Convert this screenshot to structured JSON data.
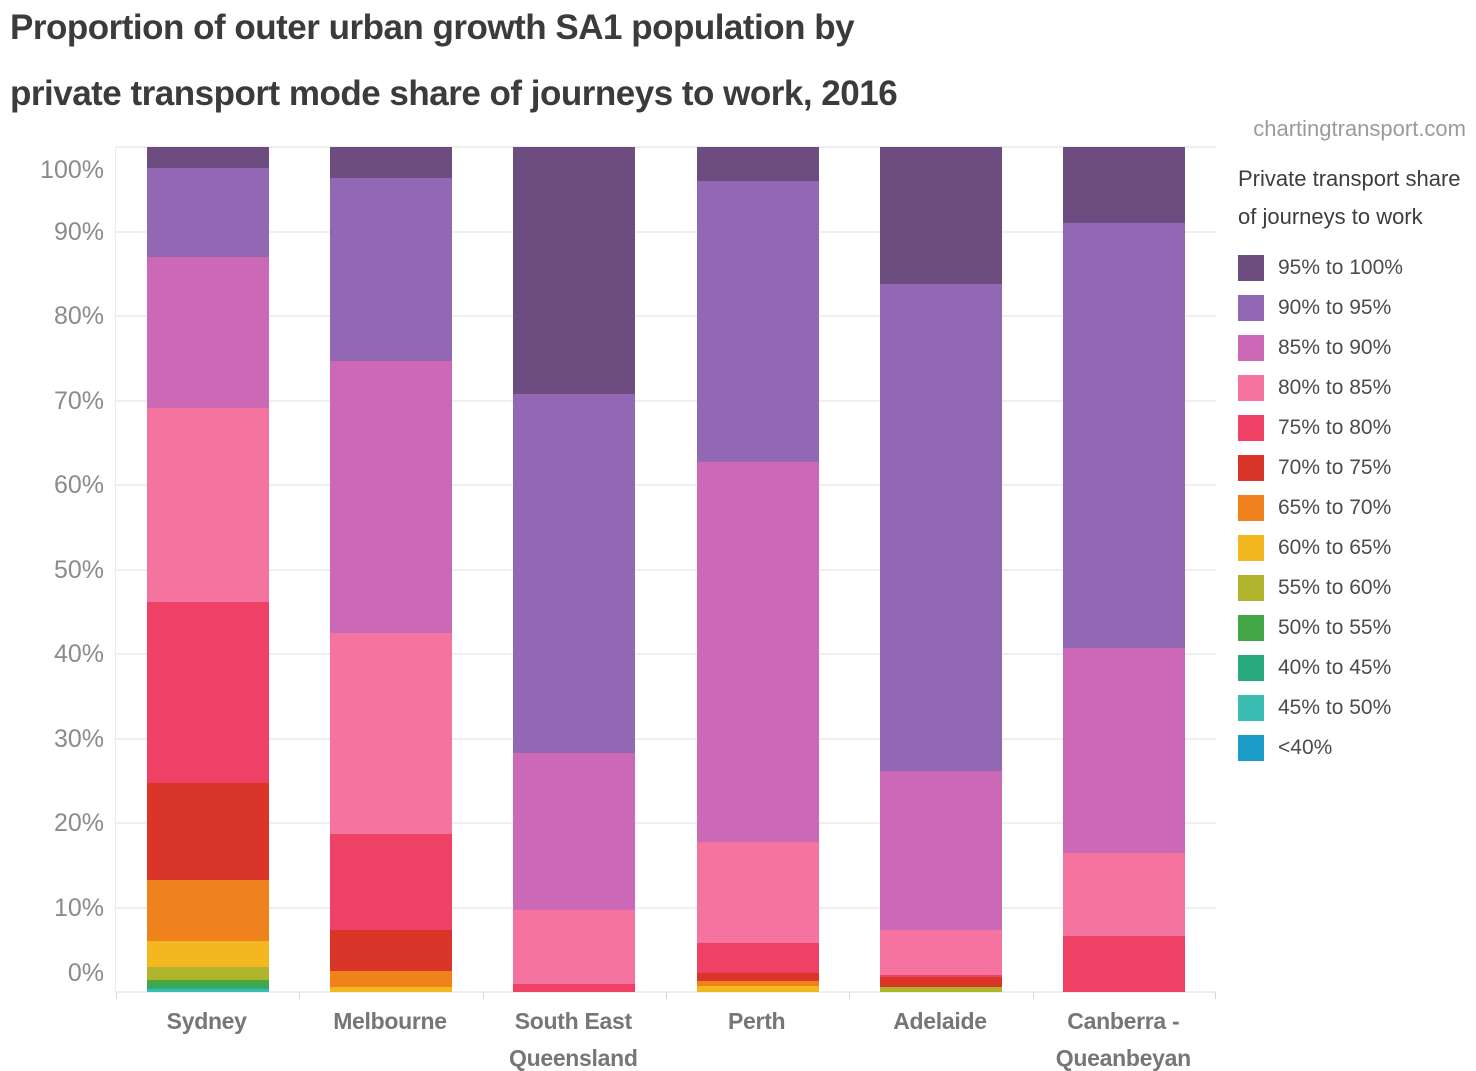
{
  "title": {
    "line1": "Proportion of outer urban growth SA1 population by",
    "line2": "private transport mode share of journeys to work, 2016"
  },
  "watermark": "chartingtransport.com",
  "legend": {
    "title": "Private transport share of journeys to work",
    "items": [
      {
        "label": "95% to 100%",
        "color": "#6d4c80"
      },
      {
        "label": "90% to 95%",
        "color": "#9267b4"
      },
      {
        "label": "85% to 90%",
        "color": "#cc69b6"
      },
      {
        "label": "80% to 85%",
        "color": "#f5739f"
      },
      {
        "label": "75% to 80%",
        "color": "#ef4165"
      },
      {
        "label": "70% to 75%",
        "color": "#d93528"
      },
      {
        "label": "65% to 70%",
        "color": "#f0821e"
      },
      {
        "label": "60% to 65%",
        "color": "#f3b820"
      },
      {
        "label": "55% to 60%",
        "color": "#afb42c"
      },
      {
        "label": "50% to 55%",
        "color": "#44a747"
      },
      {
        "label": "40% to 45%",
        "color": "#27ab7f"
      },
      {
        "label": "45% to 50%",
        "color": "#3bbcb2"
      },
      {
        "label": "<40%",
        "color": "#1b9dc8"
      }
    ]
  },
  "y_axis": {
    "tick_values": [
      100,
      90,
      80,
      70,
      60,
      50,
      40,
      30,
      20,
      10,
      0
    ],
    "tick_labels": [
      "100%",
      "90%",
      "80%",
      "70%",
      "60%",
      "50%",
      "40%",
      "30%",
      "20%",
      "10%",
      "0%"
    ]
  },
  "chart_data": {
    "type": "bar",
    "stacked": true,
    "units": "percent of SA1 population",
    "title": "Proportion of outer urban growth SA1 population by private transport mode share of journeys to work, 2016",
    "xlabel": "",
    "ylabel": "",
    "ylim": [
      0,
      100
    ],
    "grid": true,
    "legend_position": "right",
    "categories": [
      "Sydney",
      "Melbourne",
      "South East Queensland",
      "Perth",
      "Adelaide",
      "Canberra - Queanbeyan"
    ],
    "series": [
      {
        "name": "95% to 100%",
        "color": "#6d4c80",
        "values": [
          2.5,
          3.7,
          29.2,
          4.0,
          16.2,
          9.0
        ]
      },
      {
        "name": "90% to 95%",
        "color": "#9267b4",
        "values": [
          10.5,
          21.6,
          42.5,
          33.3,
          57.6,
          50.3
        ]
      },
      {
        "name": "85% to 90%",
        "color": "#cc69b6",
        "values": [
          17.9,
          32.2,
          18.6,
          44.9,
          18.9,
          24.3
        ]
      },
      {
        "name": "80% to 85%",
        "color": "#f5739f",
        "values": [
          22.9,
          23.8,
          8.7,
          12.0,
          5.3,
          9.8
        ]
      },
      {
        "name": "75% to 80%",
        "color": "#ef4165",
        "values": [
          21.5,
          11.4,
          1.0,
          3.5,
          0.2,
          6.6
        ]
      },
      {
        "name": "70% to 75%",
        "color": "#d93528",
        "values": [
          11.5,
          4.8,
          0,
          1.0,
          1.2,
          0
        ]
      },
      {
        "name": "65% to 70%",
        "color": "#f0821e",
        "values": [
          7.2,
          1.9,
          0,
          0.6,
          0,
          0
        ]
      },
      {
        "name": "60% to 65%",
        "color": "#f3b820",
        "values": [
          3.0,
          0.6,
          0,
          0.7,
          0,
          0
        ]
      },
      {
        "name": "55% to 60%",
        "color": "#afb42c",
        "values": [
          1.6,
          0,
          0,
          0,
          0.6,
          0
        ]
      },
      {
        "name": "50% to 55%",
        "color": "#44a747",
        "values": [
          0.8,
          0,
          0,
          0,
          0,
          0
        ]
      },
      {
        "name": "40% to 45%",
        "color": "#27ab7f",
        "values": [
          0.3,
          0,
          0,
          0,
          0,
          0
        ]
      },
      {
        "name": "45% to 50%",
        "color": "#3bbcb2",
        "values": [
          0.3,
          0,
          0,
          0,
          0,
          0
        ]
      },
      {
        "name": "<40%",
        "color": "#1b9dc8",
        "values": [
          0,
          0,
          0,
          0,
          0,
          0
        ]
      }
    ]
  }
}
